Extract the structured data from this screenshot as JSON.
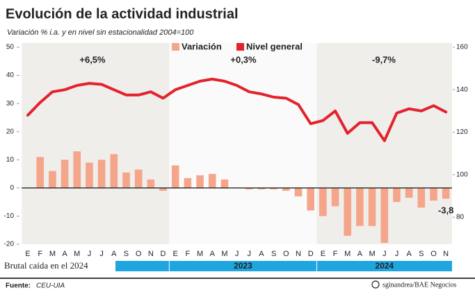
{
  "chart_data": {
    "type": "bar_line",
    "title": "Evolución de la actividad industrial",
    "subtitle": "Variación % i.a. y en nivel sin estacionalidad 2004=100",
    "categories": [
      "E",
      "F",
      "M",
      "A",
      "M",
      "J",
      "J",
      "A",
      "S",
      "O",
      "N",
      "D",
      "E",
      "F",
      "M",
      "A",
      "M",
      "J",
      "J",
      "A",
      "S",
      "O",
      "N",
      "D",
      "E",
      "F",
      "M",
      "A",
      "M",
      "J",
      "J",
      "A",
      "S",
      "O",
      "N"
    ],
    "years": [
      "2023",
      "2024"
    ],
    "caption": "Brutal caída en el 2024",
    "annotations": [
      "+6,5%",
      "+0,3%",
      "-9,7%"
    ],
    "source_label": "Fuente:",
    "source": "CEU-UIA",
    "credit": "sginandrea/BAE Negocios",
    "ylim": [
      -20,
      50
    ],
    "yticks": [
      -20,
      -10,
      0,
      10,
      20,
      30,
      40,
      50
    ],
    "y2lim": [
      67.3,
      160
    ],
    "y2ticks": [
      80,
      100,
      120,
      140,
      160
    ],
    "grid": false,
    "legend": "top",
    "series": [
      {
        "name": "Variación",
        "color": "#f4a58a",
        "type": "bar",
        "values": [
          null,
          11,
          6,
          10,
          13,
          9,
          10,
          12,
          5.5,
          6.5,
          3,
          -1,
          8,
          3.5,
          4.5,
          5,
          3,
          0,
          -0.5,
          -0.5,
          -0.5,
          -1,
          -3,
          -8,
          -10,
          -6.5,
          -17,
          -13.5,
          -13.5,
          -19.5,
          -5,
          -3.5,
          -7,
          -4.5,
          -3.8
        ],
        "value_labels": [
          null,
          null,
          null,
          null,
          null,
          null,
          null,
          null,
          null,
          null,
          null,
          null,
          null,
          null,
          null,
          null,
          null,
          null,
          null,
          null,
          null,
          null,
          null,
          null,
          null,
          null,
          null,
          null,
          null,
          null,
          null,
          null,
          null,
          null,
          "-3,8"
        ]
      },
      {
        "name": "Nivel general",
        "color": "#e3232c",
        "type": "line",
        "axis": "y2",
        "values": [
          128,
          134,
          139,
          140,
          142,
          143,
          142.5,
          140,
          137.5,
          137.5,
          139,
          136,
          140,
          142,
          144,
          145,
          144,
          142,
          139,
          138,
          136.5,
          136,
          133,
          124,
          125.5,
          130,
          119.5,
          124.5,
          124.5,
          116,
          129,
          131,
          130,
          132.5,
          129.5
        ]
      }
    ]
  }
}
